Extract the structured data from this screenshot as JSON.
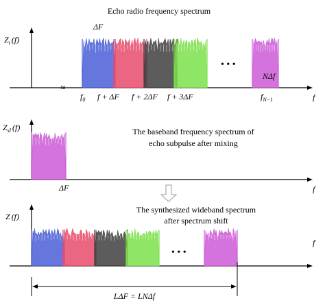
{
  "colors": {
    "blue": "#4a5fd6",
    "red": "#e84b6a",
    "dark": "#3f3f3f",
    "green": "#7be04a",
    "magenta": "#cc5ad8",
    "arrow_fill": "#ffffff",
    "arrow_stroke": "#9a9a9a"
  },
  "panel1": {
    "title": "Echo radio frequency spectrum",
    "ylabel": {
      "main": "Z",
      "sub": "t",
      "arg": "(f)"
    },
    "delta_label": "ΔF",
    "break_mark": "≈",
    "ellipsis": "• • •",
    "last_label": "NΔf",
    "ticks": [
      "f",
      "f + ΔF",
      "f + 2ΔF",
      "f + 3ΔF",
      "f"
    ],
    "tick_subs": [
      "0",
      "0",
      "0",
      "0",
      "N−1"
    ],
    "f_axis": "f"
  },
  "panel2": {
    "title_line1": "The baseband frequency spectrum of",
    "title_line2": "echo subpulse  after mixing",
    "ylabel": {
      "main": "Z",
      "sub": "sl",
      "arg": "(f)"
    },
    "tick": "ΔF",
    "f_axis": "f"
  },
  "panel3": {
    "title_line1": "The synthesized wideband spectrum",
    "title_line2": "after spectrum shift",
    "ylabel": {
      "main": "Z",
      "arg": "(f)"
    },
    "ellipsis": "• • •",
    "span_label": "LΔF = LNΔf",
    "f_axis": "f"
  }
}
